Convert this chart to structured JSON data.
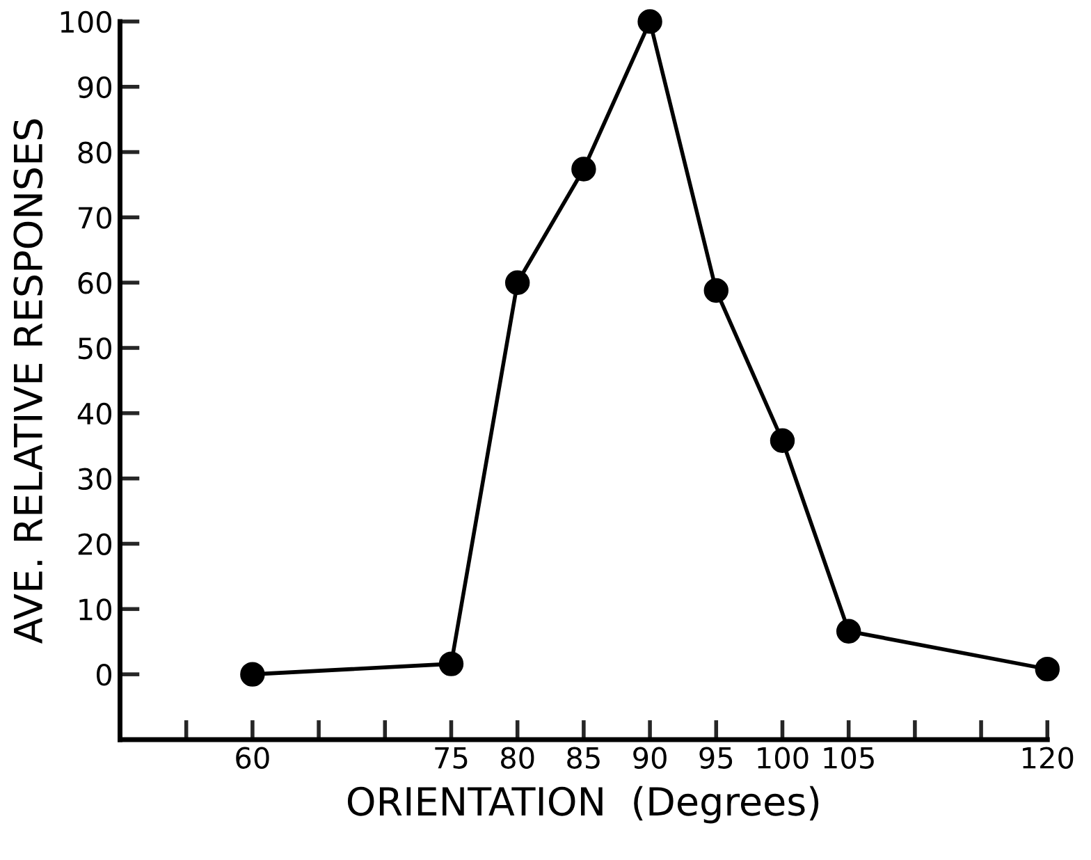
{
  "chart_data": {
    "type": "line",
    "xlabel": "ORIENTATION  (Degrees)",
    "ylabel": "AVE. RELATIVE RESPONSES",
    "x": [
      60,
      75,
      80,
      85,
      90,
      95,
      100,
      105,
      120
    ],
    "series": [
      {
        "color": "#000000",
        "values": [
          0,
          1.6,
          60,
          77.4,
          100,
          58.8,
          35.8,
          6.6,
          0.8
        ]
      }
    ],
    "marker": "circle",
    "line_style": "solid",
    "grid": false,
    "xlim": [
      50,
      120
    ],
    "ylim": [
      -10,
      100
    ],
    "xticks": [
      {
        "value": 55,
        "label": null
      },
      60,
      {
        "value": 65,
        "label": null
      },
      {
        "value": 70,
        "label": null
      },
      75,
      80,
      85,
      90,
      95,
      100,
      105,
      {
        "value": 110,
        "label": null
      },
      {
        "value": 115,
        "label": null
      },
      120
    ],
    "yticks": [
      0,
      10,
      20,
      30,
      40,
      50,
      60,
      70,
      80,
      90,
      100
    ]
  }
}
